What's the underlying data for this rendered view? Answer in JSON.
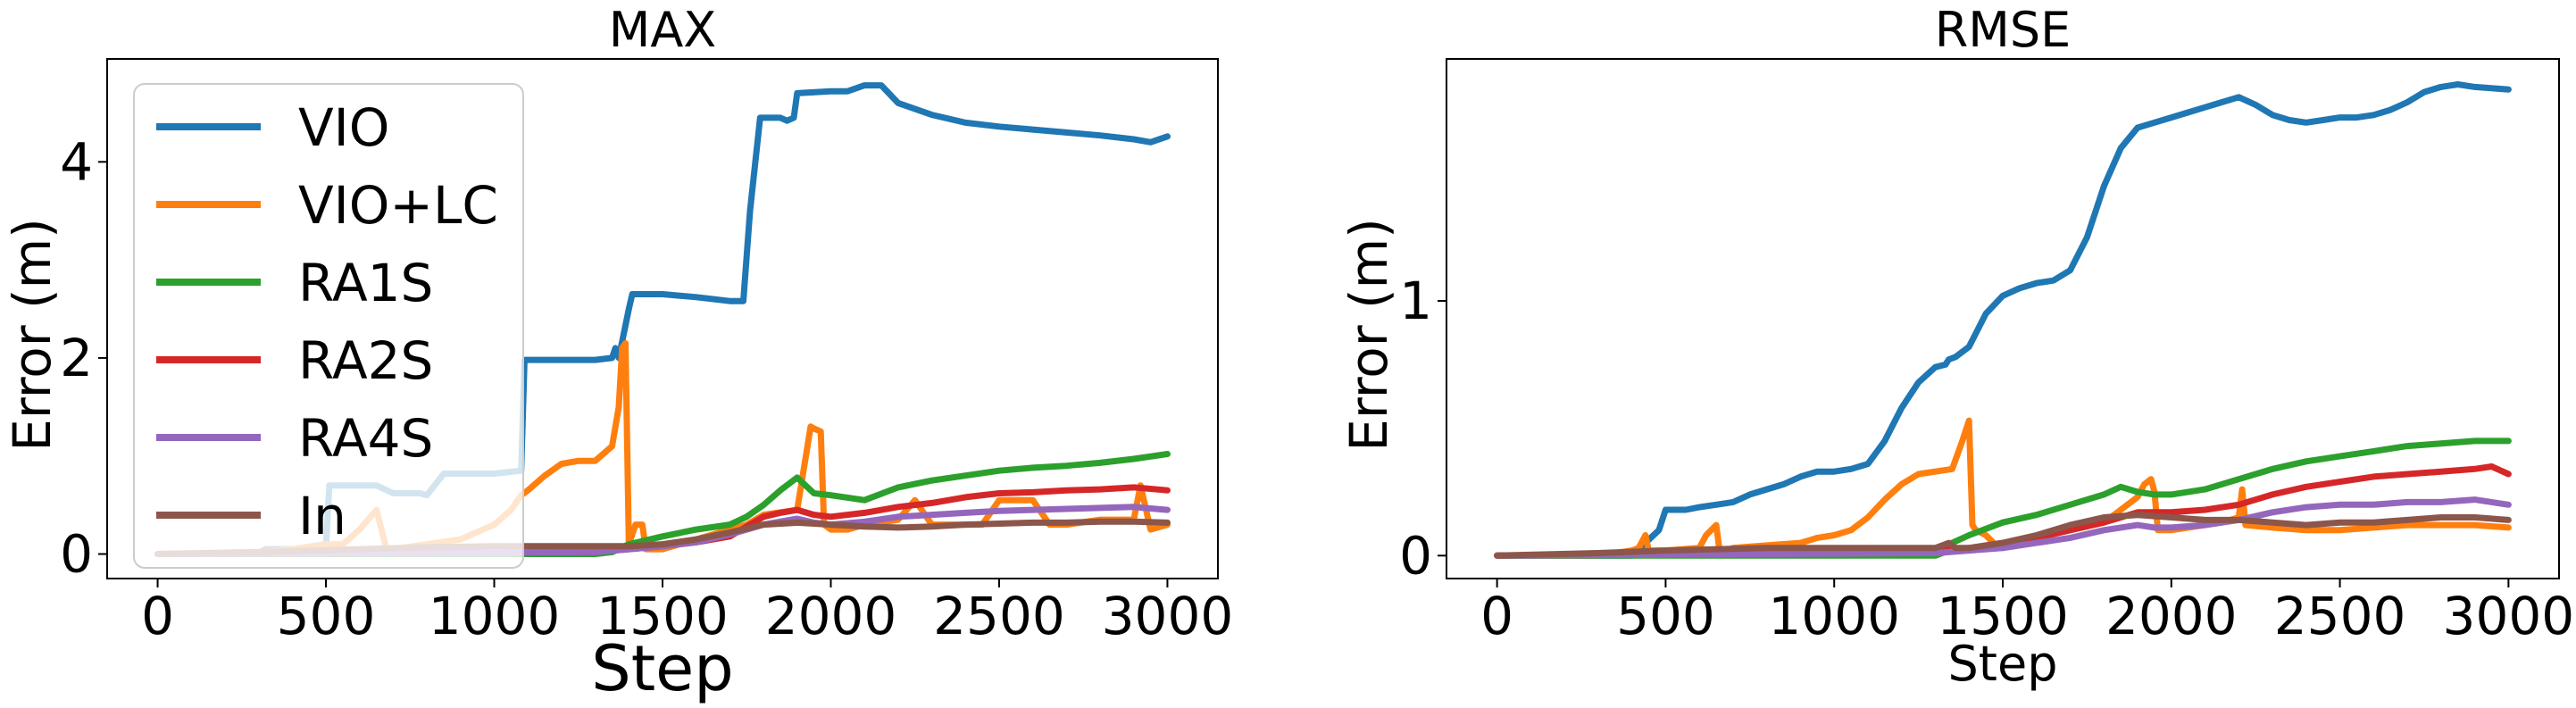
{
  "chart_data": [
    {
      "type": "line",
      "title": "MAX",
      "xlabel": "Step",
      "ylabel": "Error (m)",
      "xlim": [
        -150,
        3150
      ],
      "ylim": [
        -0.25,
        5.05
      ],
      "xticks": [
        0,
        500,
        1000,
        1500,
        2000,
        2500,
        3000
      ],
      "xtick_labels": [
        "0",
        "500",
        "1000",
        "1500",
        "2000",
        "2500",
        "3000"
      ],
      "yticks": [
        0,
        2,
        4
      ],
      "ytick_labels": [
        "0",
        "2",
        "4"
      ],
      "grid": false,
      "legend_position": "upper-left",
      "series": [
        {
          "name": "VIO",
          "color": "#1f77b4",
          "x": [
            0,
            300,
            320,
            500,
            510,
            650,
            700,
            780,
            800,
            850,
            1000,
            1080,
            1090,
            1300,
            1350,
            1360,
            1370,
            1400,
            1410,
            1440,
            1500,
            1600,
            1700,
            1740,
            1760,
            1790,
            1800,
            1850,
            1870,
            1890,
            1900,
            2000,
            2050,
            2100,
            2150,
            2200,
            2300,
            2400,
            2500,
            2600,
            2700,
            2800,
            2900,
            2950,
            3000
          ],
          "y": [
            0,
            0,
            0.05,
            0.05,
            0.7,
            0.7,
            0.62,
            0.62,
            0.6,
            0.82,
            0.82,
            0.85,
            1.98,
            1.98,
            2.0,
            2.1,
            2.0,
            2.5,
            2.65,
            2.65,
            2.65,
            2.62,
            2.58,
            2.58,
            3.5,
            4.45,
            4.45,
            4.45,
            4.42,
            4.45,
            4.7,
            4.72,
            4.72,
            4.78,
            4.78,
            4.6,
            4.48,
            4.4,
            4.36,
            4.33,
            4.3,
            4.27,
            4.23,
            4.2,
            4.26
          ]
        },
        {
          "name": "VIO+LC",
          "color": "#ff7f0e",
          "x": [
            0,
            300,
            400,
            500,
            550,
            600,
            650,
            680,
            700,
            800,
            900,
            1000,
            1050,
            1080,
            1100,
            1150,
            1200,
            1250,
            1300,
            1350,
            1370,
            1380,
            1390,
            1400,
            1420,
            1440,
            1450,
            1500,
            1550,
            1600,
            1650,
            1700,
            1750,
            1800,
            1900,
            1940,
            1950,
            1970,
            1980,
            2000,
            2050,
            2100,
            2200,
            2250,
            2300,
            2450,
            2500,
            2550,
            2600,
            2650,
            2700,
            2800,
            2900,
            2920,
            2950,
            3000
          ],
          "y": [
            0,
            0.02,
            0.05,
            0.1,
            0.1,
            0.25,
            0.45,
            0.05,
            0.05,
            0.1,
            0.15,
            0.3,
            0.45,
            0.6,
            0.65,
            0.8,
            0.92,
            0.95,
            0.95,
            1.1,
            1.5,
            2.1,
            2.15,
            0.1,
            0.3,
            0.3,
            0.05,
            0.05,
            0.1,
            0.15,
            0.2,
            0.25,
            0.3,
            0.4,
            0.45,
            1.3,
            1.28,
            1.25,
            0.3,
            0.25,
            0.25,
            0.3,
            0.35,
            0.55,
            0.3,
            0.3,
            0.55,
            0.55,
            0.55,
            0.3,
            0.3,
            0.35,
            0.35,
            0.7,
            0.25,
            0.3
          ]
        },
        {
          "name": "RA1S",
          "color": "#2ca02c",
          "x": [
            0,
            1300,
            1350,
            1400,
            1500,
            1600,
            1700,
            1750,
            1800,
            1850,
            1900,
            1950,
            2000,
            2100,
            2200,
            2300,
            2400,
            2500,
            2600,
            2700,
            2800,
            2900,
            3000
          ],
          "y": [
            0,
            0,
            0.02,
            0.1,
            0.18,
            0.25,
            0.3,
            0.38,
            0.5,
            0.65,
            0.78,
            0.62,
            0.6,
            0.55,
            0.68,
            0.75,
            0.8,
            0.85,
            0.88,
            0.9,
            0.93,
            0.97,
            1.02
          ]
        },
        {
          "name": "RA2S",
          "color": "#d62728",
          "x": [
            0,
            1300,
            1400,
            1500,
            1600,
            1700,
            1750,
            1800,
            1850,
            1900,
            1950,
            2000,
            2100,
            2200,
            2300,
            2400,
            2500,
            2600,
            2700,
            2800,
            2900,
            3000
          ],
          "y": [
            0,
            0.02,
            0.05,
            0.08,
            0.12,
            0.18,
            0.28,
            0.38,
            0.42,
            0.45,
            0.4,
            0.38,
            0.42,
            0.48,
            0.52,
            0.58,
            0.62,
            0.63,
            0.65,
            0.66,
            0.68,
            0.65
          ]
        },
        {
          "name": "RA4S",
          "color": "#9467bd",
          "x": [
            0,
            1300,
            1400,
            1500,
            1600,
            1700,
            1800,
            1900,
            1950,
            2000,
            2100,
            2200,
            2300,
            2400,
            2500,
            2600,
            2700,
            2800,
            2900,
            3000
          ],
          "y": [
            0,
            0.02,
            0.05,
            0.08,
            0.12,
            0.2,
            0.3,
            0.36,
            0.32,
            0.3,
            0.33,
            0.38,
            0.4,
            0.42,
            0.44,
            0.45,
            0.46,
            0.47,
            0.48,
            0.45
          ]
        },
        {
          "name": "In",
          "color": "#8c564b",
          "x": [
            0,
            300,
            600,
            800,
            1000,
            1300,
            1400,
            1500,
            1600,
            1700,
            1800,
            1900,
            2000,
            2100,
            2200,
            2300,
            2400,
            2500,
            2600,
            2700,
            2800,
            2900,
            3000
          ],
          "y": [
            0,
            0.02,
            0.05,
            0.07,
            0.08,
            0.08,
            0.08,
            0.1,
            0.15,
            0.22,
            0.3,
            0.32,
            0.3,
            0.28,
            0.27,
            0.28,
            0.3,
            0.31,
            0.32,
            0.32,
            0.33,
            0.33,
            0.32
          ]
        }
      ]
    },
    {
      "type": "line",
      "title": "RMSE",
      "xlabel": "Step",
      "ylabel": "Error (m)",
      "xlim": [
        -150,
        3150
      ],
      "ylim": [
        -0.09,
        1.95
      ],
      "xticks": [
        0,
        500,
        1000,
        1500,
        2000,
        2500,
        3000
      ],
      "xtick_labels": [
        "0",
        "500",
        "1000",
        "1500",
        "2000",
        "2500",
        "3000"
      ],
      "yticks": [
        0,
        1
      ],
      "ytick_labels": [
        "0",
        "1"
      ],
      "grid": false,
      "series": [
        {
          "name": "VIO",
          "color": "#1f77b4",
          "x": [
            0,
            400,
            480,
            500,
            560,
            600,
            650,
            700,
            750,
            800,
            850,
            900,
            950,
            1000,
            1050,
            1100,
            1150,
            1200,
            1250,
            1300,
            1330,
            1340,
            1360,
            1400,
            1450,
            1500,
            1550,
            1600,
            1650,
            1700,
            1750,
            1800,
            1850,
            1900,
            1950,
            2000,
            2050,
            2100,
            2150,
            2200,
            2250,
            2300,
            2350,
            2400,
            2450,
            2500,
            2550,
            2600,
            2650,
            2700,
            2750,
            2800,
            2850,
            2900,
            3000
          ],
          "y": [
            0,
            0,
            0.1,
            0.18,
            0.18,
            0.19,
            0.2,
            0.21,
            0.24,
            0.26,
            0.28,
            0.31,
            0.33,
            0.33,
            0.34,
            0.36,
            0.45,
            0.58,
            0.68,
            0.74,
            0.75,
            0.77,
            0.78,
            0.82,
            0.95,
            1.02,
            1.05,
            1.07,
            1.08,
            1.12,
            1.25,
            1.45,
            1.6,
            1.68,
            1.7,
            1.72,
            1.74,
            1.76,
            1.78,
            1.8,
            1.77,
            1.73,
            1.71,
            1.7,
            1.71,
            1.72,
            1.72,
            1.73,
            1.75,
            1.78,
            1.82,
            1.84,
            1.85,
            1.84,
            1.83
          ]
        },
        {
          "name": "VIO+LC",
          "color": "#ff7f0e",
          "x": [
            0,
            300,
            400,
            420,
            440,
            450,
            500,
            600,
            620,
            650,
            660,
            680,
            700,
            800,
            900,
            950,
            1000,
            1050,
            1100,
            1150,
            1200,
            1250,
            1300,
            1350,
            1380,
            1400,
            1410,
            1420,
            1450,
            1480,
            1500,
            1550,
            1600,
            1700,
            1800,
            1850,
            1900,
            1920,
            1940,
            1950,
            1960,
            2000,
            2100,
            2150,
            2200,
            2210,
            2220,
            2300,
            2400,
            2500,
            2600,
            2700,
            2800,
            2900,
            3000
          ],
          "y": [
            0,
            0,
            0.02,
            0.03,
            0.08,
            0.02,
            0.02,
            0.03,
            0.08,
            0.12,
            0.02,
            0.02,
            0.03,
            0.04,
            0.05,
            0.07,
            0.08,
            0.1,
            0.15,
            0.22,
            0.28,
            0.32,
            0.33,
            0.34,
            0.45,
            0.53,
            0.12,
            0.1,
            0.08,
            0.04,
            0.03,
            0.05,
            0.07,
            0.1,
            0.13,
            0.18,
            0.23,
            0.28,
            0.3,
            0.25,
            0.1,
            0.1,
            0.12,
            0.13,
            0.15,
            0.26,
            0.12,
            0.11,
            0.1,
            0.1,
            0.11,
            0.12,
            0.12,
            0.12,
            0.11
          ]
        },
        {
          "name": "RA1S",
          "color": "#2ca02c",
          "x": [
            0,
            1300,
            1340,
            1350,
            1400,
            1500,
            1600,
            1700,
            1800,
            1850,
            1900,
            1950,
            2000,
            2100,
            2200,
            2300,
            2400,
            2500,
            2600,
            2700,
            2800,
            2900,
            3000
          ],
          "y": [
            0,
            0,
            0.02,
            0.05,
            0.08,
            0.13,
            0.16,
            0.2,
            0.24,
            0.27,
            0.25,
            0.24,
            0.24,
            0.26,
            0.3,
            0.34,
            0.37,
            0.39,
            0.41,
            0.43,
            0.44,
            0.45,
            0.45
          ]
        },
        {
          "name": "RA2S",
          "color": "#d62728",
          "x": [
            0,
            1300,
            1400,
            1500,
            1600,
            1700,
            1800,
            1850,
            1900,
            1950,
            2000,
            2100,
            2200,
            2300,
            2400,
            2500,
            2600,
            2700,
            2800,
            2900,
            2950,
            3000
          ],
          "y": [
            0,
            0.02,
            0.03,
            0.05,
            0.07,
            0.1,
            0.13,
            0.15,
            0.17,
            0.17,
            0.17,
            0.18,
            0.2,
            0.24,
            0.27,
            0.29,
            0.31,
            0.32,
            0.33,
            0.34,
            0.35,
            0.32
          ]
        },
        {
          "name": "RA4S",
          "color": "#9467bd",
          "x": [
            0,
            1300,
            1400,
            1500,
            1600,
            1700,
            1800,
            1900,
            1950,
            2000,
            2100,
            2200,
            2300,
            2400,
            2500,
            2600,
            2700,
            2800,
            2900,
            3000
          ],
          "y": [
            0,
            0.01,
            0.02,
            0.03,
            0.05,
            0.07,
            0.1,
            0.12,
            0.11,
            0.11,
            0.12,
            0.14,
            0.17,
            0.19,
            0.2,
            0.2,
            0.21,
            0.21,
            0.22,
            0.2
          ]
        },
        {
          "name": "In",
          "color": "#8c564b",
          "x": [
            0,
            300,
            500,
            800,
            1000,
            1300,
            1340,
            1360,
            1400,
            1500,
            1600,
            1700,
            1800,
            1900,
            2000,
            2100,
            2200,
            2300,
            2400,
            2500,
            2600,
            2700,
            2800,
            2900,
            3000
          ],
          "y": [
            0,
            0.01,
            0.02,
            0.03,
            0.03,
            0.03,
            0.05,
            0.03,
            0.03,
            0.05,
            0.08,
            0.12,
            0.15,
            0.16,
            0.15,
            0.14,
            0.14,
            0.13,
            0.12,
            0.13,
            0.13,
            0.14,
            0.15,
            0.15,
            0.14
          ]
        }
      ]
    }
  ]
}
